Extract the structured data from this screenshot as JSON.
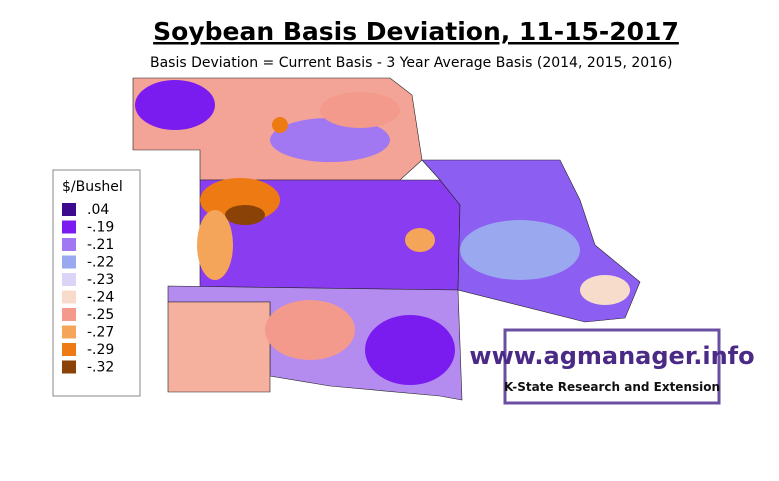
{
  "header": {
    "title": "Soybean Basis Deviation, 11-15-2017",
    "subtitle": "Basis Deviation = Current Basis - 3 Year Average Basis (2014, 2015, 2016)"
  },
  "legend": {
    "title": "$/Bushel",
    "items": [
      {
        "label": ".04",
        "color": "#3c0a8c"
      },
      {
        "label": "-.19",
        "color": "#7a1cf0"
      },
      {
        "label": "-.21",
        "color": "#a278f2"
      },
      {
        "label": "-.22",
        "color": "#9aa8ef"
      },
      {
        "label": "-.23",
        "color": "#dcd4f6"
      },
      {
        "label": "-.24",
        "color": "#f8dccb"
      },
      {
        "label": "-.25",
        "color": "#f39a8c"
      },
      {
        "label": "-.27",
        "color": "#f5a55a"
      },
      {
        "label": "-.29",
        "color": "#ee7a14"
      },
      {
        "label": "-.32",
        "color": "#8a4206"
      }
    ]
  },
  "logo": {
    "url": "www.agmanager.info",
    "org": "K-State Research and Extension"
  }
}
